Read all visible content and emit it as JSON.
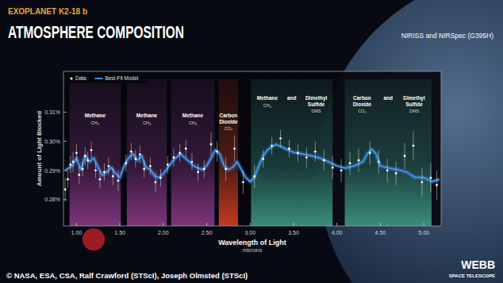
{
  "chart_data": {
    "type": "line",
    "kicker": "EXOPLANET K2-18 b",
    "title": "ATMOSPHERE COMPOSITION",
    "subtitle": "NIRISS and NIRSpec (G395H)",
    "x_label": "Wavelength of Light",
    "x_unit": "microns",
    "y_label": "Amount of Light Blocked",
    "credit": "© NASA, ESA, CSA, Ralf Crawford (STScI), Joseph Olmsted (STScI)",
    "logo": [
      "WEBB",
      "SPACE TELESCOPE"
    ],
    "xlim": [
      0.85,
      5.2
    ],
    "ylim": [
      0.271,
      0.324
    ],
    "xticks": [
      {
        "value": 1,
        "label": "1.00"
      },
      {
        "value": 1.5,
        "label": "1.50"
      },
      {
        "value": 2,
        "label": "2.00"
      },
      {
        "value": 2.5,
        "label": "2.50"
      },
      {
        "value": 3,
        "label": "3.00"
      },
      {
        "value": 3.5,
        "label": "3.50"
      },
      {
        "value": 4,
        "label": "4.00"
      },
      {
        "value": 4.5,
        "label": "4.50"
      },
      {
        "value": 5,
        "label": "5.00"
      }
    ],
    "yticks": [
      {
        "value": 0.28,
        "label": "0.28%"
      },
      {
        "value": 0.29,
        "label": "0.29%"
      },
      {
        "value": 0.3,
        "label": "0.30%"
      },
      {
        "value": 0.31,
        "label": "0.31%"
      }
    ],
    "grid": false,
    "legend": "upper left",
    "bands": [
      {
        "start": 0.92,
        "end": 1.51,
        "color": "#8a3a88",
        "molecules": [
          {
            "name": "Methane",
            "formula": "CH₄"
          }
        ]
      },
      {
        "start": 1.58,
        "end": 2.04,
        "color": "#8a3a88",
        "molecules": [
          {
            "name": "Methane",
            "formula": "CH₄"
          }
        ]
      },
      {
        "start": 2.09,
        "end": 2.59,
        "color": "#8a3a88",
        "molecules": [
          {
            "name": "Methane",
            "formula": "CH₄"
          }
        ]
      },
      {
        "start": 2.64,
        "end": 2.86,
        "color": "#d8401f",
        "molecules": [
          {
            "name": "Carbon Dioxide",
            "formula": "CO₂"
          }
        ]
      },
      {
        "start": 3.01,
        "end": 3.95,
        "color": "#3f9a88",
        "joiner": "and",
        "molecules": [
          {
            "name": "Methane",
            "formula": "CH₄"
          },
          {
            "name": "Dimethyl Sulfide",
            "formula": "DMS"
          }
        ]
      },
      {
        "start": 4.09,
        "end": 5.09,
        "color": "#3f9a88",
        "joiner": "and",
        "molecules": [
          {
            "name": "Carbon Dioxide",
            "formula": "CO₂"
          },
          {
            "name": "Dimethyl Sulfide",
            "formula": "DMS"
          }
        ]
      }
    ],
    "series": [
      {
        "name": "Data",
        "type": "scatter",
        "color": "#ffffff",
        "marker": "circle",
        "x": [
          0.87,
          0.9,
          0.93,
          0.96,
          1.0,
          1.03,
          1.07,
          1.1,
          1.13,
          1.17,
          1.22,
          1.27,
          1.32,
          1.37,
          1.42,
          1.48,
          1.57,
          1.63,
          1.68,
          1.73,
          1.78,
          1.85,
          1.91,
          1.97,
          2.05,
          2.12,
          2.19,
          2.26,
          2.33,
          2.4,
          2.47,
          2.55,
          2.62,
          2.72,
          2.82,
          2.92,
          3.05,
          3.15,
          3.25,
          3.35,
          3.45,
          3.55,
          3.65,
          3.75,
          3.85,
          3.95,
          4.05,
          4.15,
          4.25,
          4.38,
          4.48,
          4.58,
          4.68,
          4.78,
          4.88,
          4.98,
          5.08,
          5.15
        ],
        "values": [
          0.2835,
          0.287,
          0.292,
          0.293,
          0.296,
          0.2885,
          0.2905,
          0.295,
          0.2935,
          0.297,
          0.29,
          0.287,
          0.2895,
          0.2915,
          0.288,
          0.2865,
          0.2925,
          0.2965,
          0.294,
          0.2955,
          0.2905,
          0.2915,
          0.286,
          0.2875,
          0.292,
          0.2945,
          0.296,
          0.2975,
          0.293,
          0.2895,
          0.2905,
          0.299,
          0.2965,
          0.2905,
          0.2975,
          0.286,
          0.288,
          0.294,
          0.2985,
          0.301,
          0.2975,
          0.296,
          0.2945,
          0.2965,
          0.2935,
          0.291,
          0.29,
          0.2925,
          0.2935,
          0.296,
          0.293,
          0.29,
          0.289,
          0.295,
          0.2985,
          0.286,
          0.2875,
          0.285
        ],
        "errors": [
          0.004,
          0.003,
          0.003,
          0.0035,
          0.003,
          0.003,
          0.0025,
          0.003,
          0.003,
          0.003,
          0.0025,
          0.003,
          0.003,
          0.003,
          0.003,
          0.0035,
          0.003,
          0.003,
          0.003,
          0.003,
          0.003,
          0.003,
          0.0035,
          0.003,
          0.003,
          0.003,
          0.003,
          0.003,
          0.003,
          0.003,
          0.003,
          0.004,
          0.0035,
          0.004,
          0.0045,
          0.004,
          0.004,
          0.003,
          0.003,
          0.003,
          0.003,
          0.003,
          0.0035,
          0.0035,
          0.0035,
          0.004,
          0.004,
          0.004,
          0.004,
          0.004,
          0.004,
          0.004,
          0.004,
          0.0045,
          0.005,
          0.005,
          0.005,
          0.005
        ]
      },
      {
        "name": "Best-Fit Model",
        "type": "line",
        "color": "#3d8fe8",
        "line_style": "solid",
        "x": [
          0.87,
          0.95,
          1.0,
          1.05,
          1.1,
          1.15,
          1.2,
          1.25,
          1.3,
          1.35,
          1.4,
          1.45,
          1.5,
          1.55,
          1.6,
          1.65,
          1.7,
          1.75,
          1.8,
          1.85,
          1.9,
          1.95,
          2.0,
          2.05,
          2.1,
          2.15,
          2.2,
          2.25,
          2.3,
          2.35,
          2.4,
          2.45,
          2.5,
          2.55,
          2.6,
          2.65,
          2.7,
          2.75,
          2.8,
          2.85,
          2.9,
          2.95,
          3.0,
          3.05,
          3.1,
          3.15,
          3.2,
          3.25,
          3.3,
          3.35,
          3.4,
          3.5,
          3.6,
          3.7,
          3.8,
          3.9,
          4.0,
          4.1,
          4.2,
          4.3,
          4.35,
          4.4,
          4.45,
          4.5,
          4.6,
          4.7,
          4.8,
          4.9,
          5.0,
          5.1,
          5.18
        ],
        "values": [
          0.29,
          0.2916,
          0.2943,
          0.2903,
          0.2951,
          0.293,
          0.2943,
          0.291,
          0.2884,
          0.2895,
          0.2911,
          0.289,
          0.2876,
          0.2916,
          0.2943,
          0.2957,
          0.2935,
          0.2951,
          0.2911,
          0.2903,
          0.2881,
          0.2876,
          0.2889,
          0.2908,
          0.293,
          0.2945,
          0.2957,
          0.2943,
          0.293,
          0.2916,
          0.2908,
          0.2903,
          0.2916,
          0.2943,
          0.297,
          0.2957,
          0.2916,
          0.2903,
          0.2911,
          0.293,
          0.2903,
          0.2876,
          0.2862,
          0.2876,
          0.2916,
          0.295,
          0.297,
          0.2982,
          0.2989,
          0.2983,
          0.2976,
          0.2962,
          0.2957,
          0.2951,
          0.2943,
          0.293,
          0.2916,
          0.2908,
          0.2916,
          0.293,
          0.2957,
          0.2973,
          0.2957,
          0.2916,
          0.2908,
          0.2903,
          0.2895,
          0.2876,
          0.2876,
          0.2862,
          0.287
        ]
      }
    ]
  }
}
